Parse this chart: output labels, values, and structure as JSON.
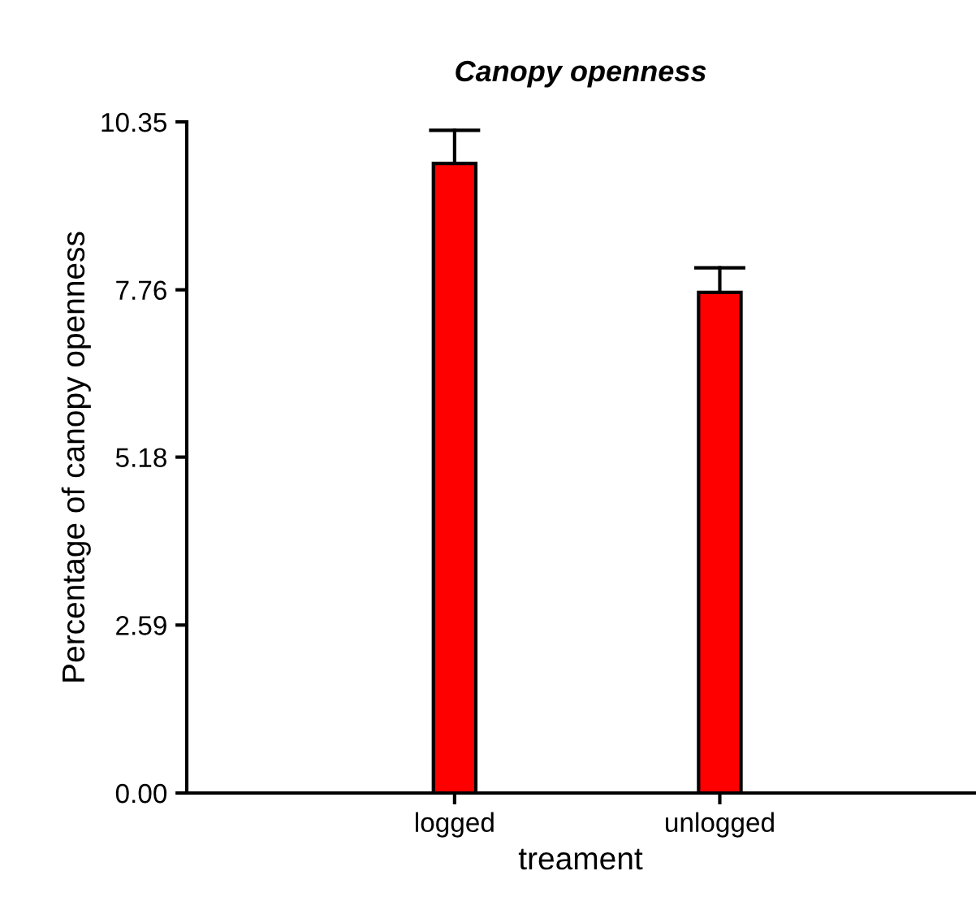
{
  "chart_data": {
    "type": "bar",
    "title": "Canopy openness",
    "xlabel": "treament",
    "ylabel": "Percentage of canopy openness",
    "categories": [
      "logged",
      "unlogged"
    ],
    "values": [
      9.71,
      7.72
    ],
    "color": "#ff0000",
    "errors": [
      [
        9.71,
        10.22
      ],
      [
        7.72,
        8.1
      ]
    ],
    "ylim": [
      0,
      10.35
    ],
    "yticks": [
      {
        "value": 0,
        "label": "0.00"
      },
      2.59,
      5.18,
      7.76,
      10.35
    ],
    "grid": false,
    "legend": false
  }
}
